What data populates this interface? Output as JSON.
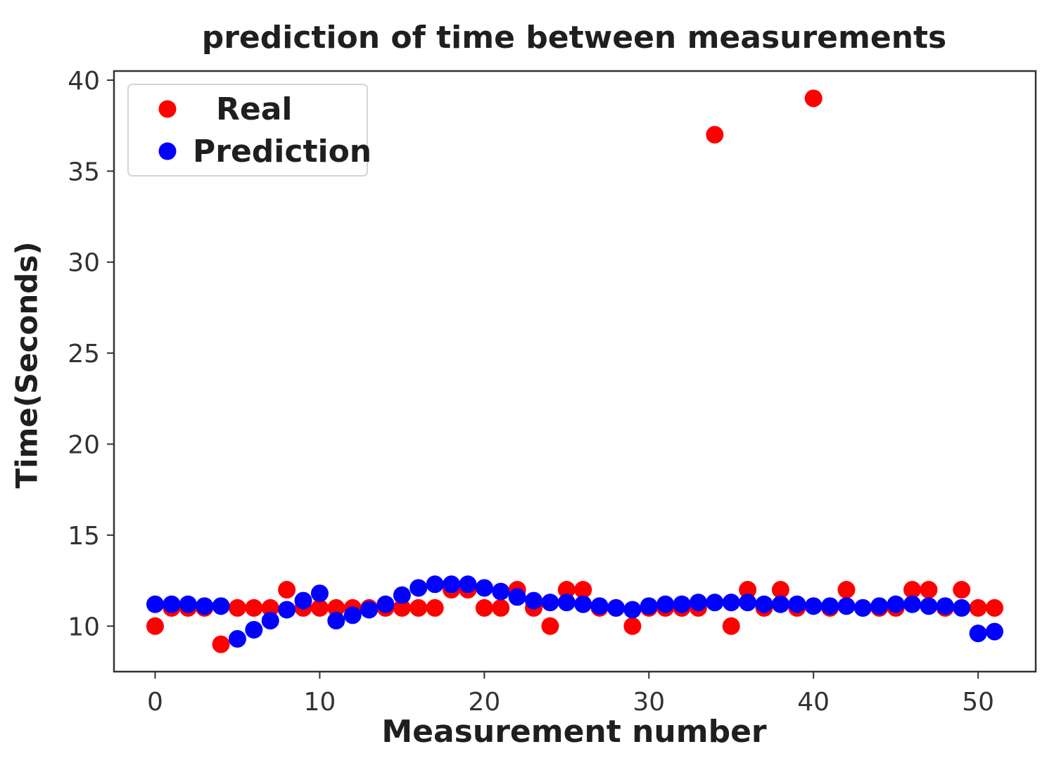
{
  "chart_data": {
    "type": "scatter",
    "title": "prediction of time between measurements",
    "xlabel": "Measurement number",
    "ylabel": "Time(Seconds)",
    "xlim": [
      -2.5,
      53.5
    ],
    "ylim": [
      7.5,
      40.5
    ],
    "xticks": [
      0,
      10,
      20,
      30,
      40,
      50
    ],
    "yticks": [
      10,
      15,
      20,
      25,
      30,
      35,
      40
    ],
    "grid": false,
    "legend_position": "top-left",
    "series": [
      {
        "name": "Real",
        "color": "#ff0000",
        "points": [
          [
            0,
            10
          ],
          [
            1,
            11
          ],
          [
            2,
            11
          ],
          [
            3,
            11
          ],
          [
            4,
            9
          ],
          [
            5,
            11
          ],
          [
            6,
            11
          ],
          [
            7,
            11
          ],
          [
            8,
            12
          ],
          [
            9,
            11
          ],
          [
            10,
            11
          ],
          [
            11,
            11
          ],
          [
            12,
            11
          ],
          [
            13,
            11
          ],
          [
            14,
            11
          ],
          [
            15,
            11
          ],
          [
            16,
            11
          ],
          [
            17,
            11
          ],
          [
            18,
            12
          ],
          [
            19,
            12
          ],
          [
            20,
            11
          ],
          [
            21,
            11
          ],
          [
            22,
            12
          ],
          [
            23,
            11
          ],
          [
            24,
            10
          ],
          [
            25,
            12
          ],
          [
            26,
            12
          ],
          [
            27,
            11
          ],
          [
            28,
            11
          ],
          [
            29,
            10
          ],
          [
            30,
            11
          ],
          [
            31,
            11
          ],
          [
            32,
            11
          ],
          [
            33,
            11
          ],
          [
            34,
            37
          ],
          [
            35,
            10
          ],
          [
            36,
            12
          ],
          [
            37,
            11
          ],
          [
            38,
            12
          ],
          [
            39,
            11
          ],
          [
            40,
            39
          ],
          [
            41,
            11
          ],
          [
            42,
            12
          ],
          [
            43,
            11
          ],
          [
            44,
            11
          ],
          [
            45,
            11
          ],
          [
            46,
            12
          ],
          [
            47,
            12
          ],
          [
            48,
            11
          ],
          [
            49,
            12
          ],
          [
            50,
            11
          ],
          [
            51,
            11
          ]
        ]
      },
      {
        "name": "Prediction",
        "color": "#0000ff",
        "points": [
          [
            0,
            11.2
          ],
          [
            1,
            11.2
          ],
          [
            2,
            11.2
          ],
          [
            3,
            11.1
          ],
          [
            4,
            11.1
          ],
          [
            5,
            9.3
          ],
          [
            6,
            9.8
          ],
          [
            7,
            10.3
          ],
          [
            8,
            10.9
          ],
          [
            9,
            11.4
          ],
          [
            10,
            11.8
          ],
          [
            11,
            10.3
          ],
          [
            12,
            10.6
          ],
          [
            13,
            10.9
          ],
          [
            14,
            11.2
          ],
          [
            15,
            11.7
          ],
          [
            16,
            12.1
          ],
          [
            17,
            12.3
          ],
          [
            18,
            12.3
          ],
          [
            19,
            12.3
          ],
          [
            20,
            12.1
          ],
          [
            21,
            11.9
          ],
          [
            22,
            11.6
          ],
          [
            23,
            11.4
          ],
          [
            24,
            11.3
          ],
          [
            25,
            11.3
          ],
          [
            26,
            11.2
          ],
          [
            27,
            11.1
          ],
          [
            28,
            11.0
          ],
          [
            29,
            10.9
          ],
          [
            30,
            11.1
          ],
          [
            31,
            11.2
          ],
          [
            32,
            11.2
          ],
          [
            33,
            11.3
          ],
          [
            34,
            11.3
          ],
          [
            35,
            11.3
          ],
          [
            36,
            11.3
          ],
          [
            37,
            11.2
          ],
          [
            38,
            11.2
          ],
          [
            39,
            11.2
          ],
          [
            40,
            11.1
          ],
          [
            41,
            11.1
          ],
          [
            42,
            11.1
          ],
          [
            43,
            11.0
          ],
          [
            44,
            11.1
          ],
          [
            45,
            11.2
          ],
          [
            46,
            11.2
          ],
          [
            47,
            11.1
          ],
          [
            48,
            11.1
          ],
          [
            49,
            11.0
          ],
          [
            50,
            9.6
          ],
          [
            51,
            9.7
          ]
        ]
      }
    ]
  }
}
